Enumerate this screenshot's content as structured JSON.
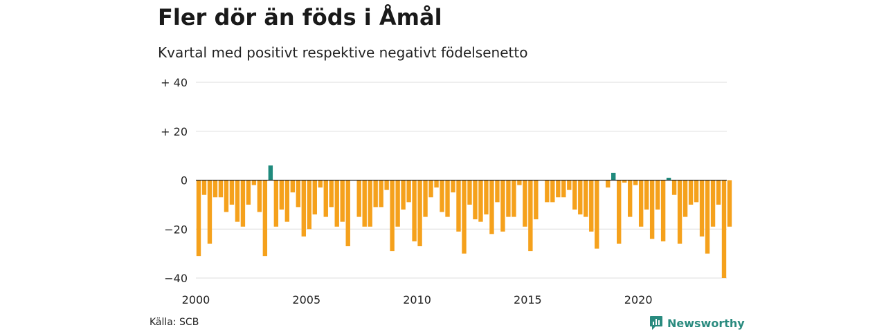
{
  "header": {
    "title": "Fler dör än föds i Åmål",
    "subtitle": "Kvartal med positivt respektive negativt födelsenetto"
  },
  "footer": {
    "source": "Källa: SCB",
    "brand": "Newsworthy",
    "brand_icon": "newsworthy-logo-icon"
  },
  "colors": {
    "positive": "#1f8a7d",
    "negative": "#f5a11c",
    "gridline": "#dddddd",
    "zero_line": "#222222"
  },
  "chart_data": {
    "type": "bar",
    "title": "Fler dör än föds i Åmål",
    "subtitle": "Kvartal med positivt respektive negativt födelsenetto",
    "xlabel": "",
    "ylabel": "",
    "start_year": 2000,
    "ylim": [
      -40,
      40
    ],
    "y_ticks": [
      {
        "value": 40,
        "label": "+ 40"
      },
      {
        "value": 20,
        "label": "+ 20"
      },
      {
        "value": 0,
        "label": "0"
      },
      {
        "value": -20,
        "label": "−20"
      },
      {
        "value": -40,
        "label": "−40"
      }
    ],
    "x_ticks": [
      2000,
      2005,
      2010,
      2015,
      2020
    ],
    "grid": true,
    "values": [
      -31,
      -6,
      -26,
      -7,
      -7,
      -13,
      -10,
      -17,
      -19,
      -10,
      -2,
      -13,
      -31,
      6,
      -19,
      -12,
      -17,
      -5,
      -11,
      -23,
      -20,
      -14,
      -3,
      -15,
      -11,
      -19,
      -17,
      -27,
      0,
      -15,
      -19,
      -19,
      -11,
      -11,
      -4,
      -29,
      -19,
      -12,
      -9,
      -25,
      -27,
      -15,
      -7,
      -3,
      -13,
      -15,
      -5,
      -21,
      -30,
      -10,
      -16,
      -17,
      -14,
      -22,
      -9,
      -21,
      -15,
      -15,
      -2,
      -19,
      -29,
      -16,
      0,
      -9,
      -9,
      -7,
      -7,
      -4,
      -12,
      -14,
      -15,
      -21,
      -28,
      0,
      -3,
      3,
      -26,
      -1,
      -15,
      -2,
      -19,
      -12,
      -24,
      -12,
      -25,
      1,
      -6,
      -26,
      -15,
      -10,
      -9,
      -23,
      -30,
      -19,
      -10,
      -40,
      -19
    ]
  }
}
